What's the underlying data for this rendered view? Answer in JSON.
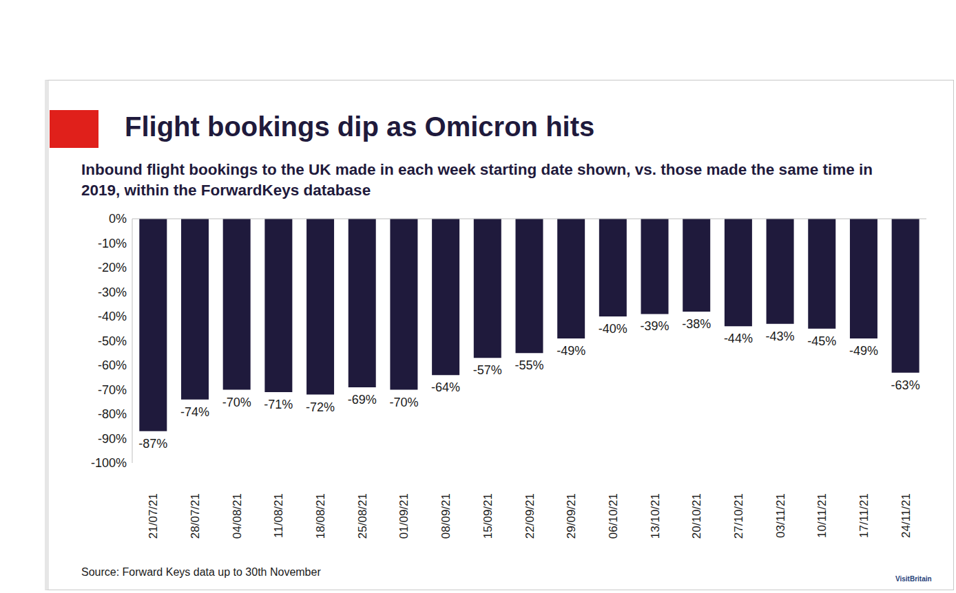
{
  "chart_data": {
    "type": "bar",
    "title": "Flight bookings dip as Omicron hits",
    "subtitle": "Inbound flight bookings to the UK made in each week starting date shown, vs. those made the same time in 2019, within the ForwardKeys database",
    "source": "Source: Forward Keys data up to 30th November",
    "logo_text": "VisitBritain",
    "categories": [
      "21/07/21",
      "28/07/21",
      "04/08/21",
      "11/08/21",
      "18/08/21",
      "25/08/21",
      "01/09/21",
      "08/09/21",
      "15/09/21",
      "22/09/21",
      "29/09/21",
      "06/10/21",
      "13/10/21",
      "20/10/21",
      "27/10/21",
      "03/11/21",
      "10/11/21",
      "17/11/21",
      "24/11/21"
    ],
    "values": [
      -87,
      -74,
      -70,
      -71,
      -72,
      -69,
      -70,
      -64,
      -57,
      -55,
      -49,
      -40,
      -39,
      -38,
      -44,
      -43,
      -45,
      -49,
      -63
    ],
    "value_labels": [
      "-87%",
      "-74%",
      "-70%",
      "-71%",
      "-72%",
      "-69%",
      "-70%",
      "-64%",
      "-57%",
      "-55%",
      "-49%",
      "-40%",
      "-39%",
      "-38%",
      "-44%",
      "-43%",
      "-45%",
      "-49%",
      "-63%"
    ],
    "color": "#1f1a3c",
    "ylim": [
      -100,
      0
    ],
    "yticks": [
      {
        "value": 0,
        "label": "0%"
      },
      {
        "value": -10,
        "label": "-10%"
      },
      {
        "value": -20,
        "label": "-20%"
      },
      {
        "value": -30,
        "label": "-30%"
      },
      {
        "value": -40,
        "label": "-40%"
      },
      {
        "value": -50,
        "label": "-50%"
      },
      {
        "value": -60,
        "label": "-60%"
      },
      {
        "value": -70,
        "label": "-70%"
      },
      {
        "value": -80,
        "label": "-80%"
      },
      {
        "value": -90,
        "label": "-90%"
      },
      {
        "value": -100,
        "label": "-100%"
      }
    ],
    "grid": false,
    "data_labels": true
  }
}
